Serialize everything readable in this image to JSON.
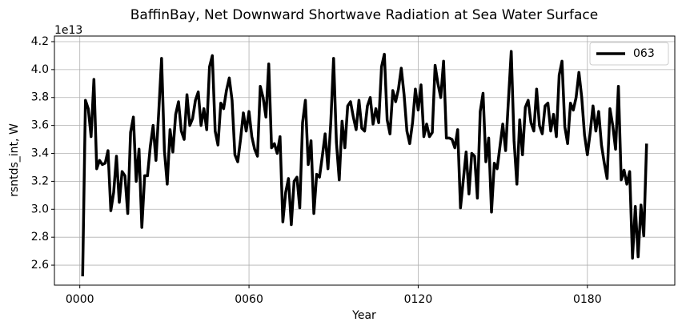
{
  "chart_data": {
    "type": "line",
    "title": "BaffinBay, Net Downward Shortwave Radiation at Sea Water Surface",
    "xlabel": "Year",
    "ylabel": "rsntds_int, W",
    "y_offset_label": "1e13",
    "x": [
      1,
      2,
      3,
      4,
      5,
      6,
      7,
      8,
      9,
      10,
      11,
      12,
      13,
      14,
      15,
      16,
      17,
      18,
      19,
      20,
      21,
      22,
      23,
      24,
      25,
      26,
      27,
      28,
      29,
      30,
      31,
      32,
      33,
      34,
      35,
      36,
      37,
      38,
      39,
      40,
      41,
      42,
      43,
      44,
      45,
      46,
      47,
      48,
      49,
      50,
      51,
      52,
      53,
      54,
      55,
      56,
      57,
      58,
      59,
      60,
      61,
      62,
      63,
      64,
      65,
      66,
      67,
      68,
      69,
      70,
      71,
      72,
      73,
      74,
      75,
      76,
      77,
      78,
      79,
      80,
      81,
      82,
      83,
      84,
      85,
      86,
      87,
      88,
      89,
      90,
      91,
      92,
      93,
      94,
      95,
      96,
      97,
      98,
      99,
      100,
      101,
      102,
      103,
      104,
      105,
      106,
      107,
      108,
      109,
      110,
      111,
      112,
      113,
      114,
      115,
      116,
      117,
      118,
      119,
      120,
      121,
      122,
      123,
      124,
      125,
      126,
      127,
      128,
      129,
      130,
      131,
      132,
      133,
      134,
      135,
      136,
      137,
      138,
      139,
      140,
      141,
      142,
      143,
      144,
      145,
      146,
      147,
      148,
      149,
      150,
      151,
      152,
      153,
      154,
      155,
      156,
      157,
      158,
      159,
      160,
      161,
      162,
      163,
      164,
      165,
      166,
      167,
      168,
      169,
      170,
      171,
      172,
      173,
      174,
      175,
      176,
      177,
      178,
      179,
      180,
      181,
      182,
      183,
      184,
      185,
      186,
      187,
      188,
      189,
      190,
      191,
      192,
      193,
      194,
      195,
      196,
      197,
      198,
      199,
      200,
      201
    ],
    "series": [
      {
        "name": "063",
        "color": "#000000",
        "values": [
          2.52,
          3.78,
          3.72,
          3.52,
          3.93,
          3.29,
          3.35,
          3.32,
          3.33,
          3.42,
          2.99,
          3.12,
          3.38,
          3.05,
          3.27,
          3.24,
          2.97,
          3.55,
          3.66,
          3.2,
          3.43,
          2.87,
          3.24,
          3.24,
          3.45,
          3.6,
          3.35,
          3.7,
          4.08,
          3.42,
          3.18,
          3.57,
          3.41,
          3.68,
          3.77,
          3.56,
          3.5,
          3.82,
          3.6,
          3.65,
          3.78,
          3.84,
          3.6,
          3.72,
          3.57,
          4.02,
          4.1,
          3.56,
          3.46,
          3.76,
          3.72,
          3.85,
          3.94,
          3.78,
          3.39,
          3.34,
          3.5,
          3.69,
          3.56,
          3.7,
          3.52,
          3.43,
          3.38,
          3.88,
          3.8,
          3.66,
          4.04,
          3.44,
          3.47,
          3.4,
          3.52,
          2.91,
          3.12,
          3.22,
          2.89,
          3.2,
          3.23,
          3.01,
          3.62,
          3.78,
          3.32,
          3.49,
          2.97,
          3.25,
          3.23,
          3.38,
          3.54,
          3.29,
          3.62,
          4.08,
          3.48,
          3.21,
          3.63,
          3.44,
          3.74,
          3.77,
          3.66,
          3.57,
          3.78,
          3.58,
          3.56,
          3.74,
          3.8,
          3.61,
          3.72,
          3.62,
          4.02,
          4.11,
          3.64,
          3.54,
          3.85,
          3.77,
          3.86,
          4.01,
          3.82,
          3.56,
          3.47,
          3.62,
          3.86,
          3.71,
          3.89,
          3.52,
          3.61,
          3.52,
          3.55,
          4.03,
          3.9,
          3.8,
          4.06,
          3.51,
          3.51,
          3.5,
          3.44,
          3.57,
          3.01,
          3.21,
          3.41,
          3.11,
          3.4,
          3.38,
          3.08,
          3.7,
          3.83,
          3.34,
          3.51,
          2.98,
          3.33,
          3.29,
          3.45,
          3.61,
          3.42,
          3.78,
          4.13,
          3.49,
          3.18,
          3.64,
          3.39,
          3.73,
          3.78,
          3.62,
          3.56,
          3.86,
          3.6,
          3.54,
          3.74,
          3.76,
          3.56,
          3.68,
          3.52,
          3.96,
          4.06,
          3.59,
          3.47,
          3.76,
          3.71,
          3.8,
          3.98,
          3.8,
          3.53,
          3.39,
          3.55,
          3.74,
          3.56,
          3.7,
          3.46,
          3.33,
          3.22,
          3.72,
          3.6,
          3.43,
          3.88,
          3.21,
          3.28,
          3.18,
          3.27,
          2.65,
          3.02,
          2.66,
          3.03,
          2.81,
          3.47
        ]
      }
    ],
    "xlim": [
      -9,
      211
    ],
    "xticks": [
      {
        "value": 0,
        "label": "0000"
      },
      {
        "value": 60,
        "label": "0060"
      },
      {
        "value": 120,
        "label": "0120"
      },
      {
        "value": 180,
        "label": "0180"
      }
    ],
    "ylim": [
      2.457,
      4.24
    ],
    "yticks": [
      2.6,
      2.8,
      {
        "value": 3.0,
        "label": "3.0"
      },
      3.2,
      3.4,
      3.6,
      3.8,
      {
        "value": 4.0,
        "label": "4.0"
      },
      4.2
    ],
    "grid": true,
    "legend": "upper right"
  }
}
